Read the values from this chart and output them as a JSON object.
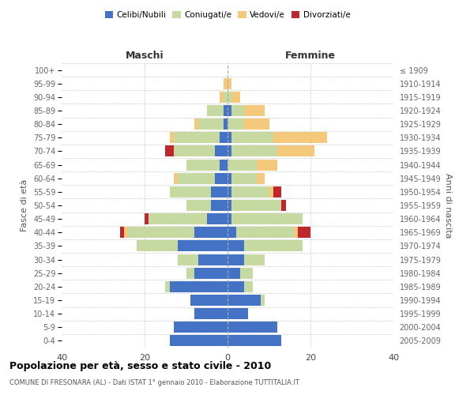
{
  "age_groups": [
    "0-4",
    "5-9",
    "10-14",
    "15-19",
    "20-24",
    "25-29",
    "30-34",
    "35-39",
    "40-44",
    "45-49",
    "50-54",
    "55-59",
    "60-64",
    "65-69",
    "70-74",
    "75-79",
    "80-84",
    "85-89",
    "90-94",
    "95-99",
    "100+"
  ],
  "birth_years": [
    "2005-2009",
    "2000-2004",
    "1995-1999",
    "1990-1994",
    "1985-1989",
    "1980-1984",
    "1975-1979",
    "1970-1974",
    "1965-1969",
    "1960-1964",
    "1955-1959",
    "1950-1954",
    "1945-1949",
    "1940-1944",
    "1935-1939",
    "1930-1934",
    "1925-1929",
    "1920-1924",
    "1915-1919",
    "1910-1914",
    "≤ 1909"
  ],
  "maschi": {
    "celibi": [
      14,
      13,
      8,
      9,
      14,
      8,
      7,
      12,
      8,
      5,
      4,
      4,
      3,
      2,
      3,
      2,
      1,
      1,
      0,
      0,
      0
    ],
    "coniugati": [
      0,
      0,
      0,
      0,
      1,
      2,
      5,
      10,
      16,
      14,
      6,
      10,
      9,
      8,
      10,
      11,
      6,
      4,
      1,
      0,
      0
    ],
    "vedovi": [
      0,
      0,
      0,
      0,
      0,
      0,
      0,
      0,
      1,
      0,
      0,
      0,
      1,
      0,
      0,
      1,
      1,
      0,
      1,
      1,
      0
    ],
    "divorziati": [
      0,
      0,
      0,
      0,
      0,
      0,
      0,
      0,
      1,
      1,
      0,
      0,
      0,
      0,
      2,
      0,
      0,
      0,
      0,
      0,
      0
    ]
  },
  "femmine": {
    "nubili": [
      13,
      12,
      5,
      8,
      4,
      3,
      4,
      4,
      2,
      1,
      1,
      1,
      1,
      0,
      1,
      1,
      0,
      1,
      0,
      0,
      0
    ],
    "coniugate": [
      0,
      0,
      0,
      1,
      2,
      3,
      5,
      14,
      14,
      17,
      12,
      9,
      6,
      7,
      11,
      10,
      4,
      3,
      1,
      0,
      0
    ],
    "vedove": [
      0,
      0,
      0,
      0,
      0,
      0,
      0,
      0,
      1,
      0,
      0,
      1,
      2,
      5,
      9,
      13,
      6,
      5,
      2,
      1,
      0
    ],
    "divorziate": [
      0,
      0,
      0,
      0,
      0,
      0,
      0,
      0,
      3,
      0,
      1,
      2,
      0,
      0,
      0,
      0,
      0,
      0,
      0,
      0,
      0
    ]
  },
  "color_celibi": "#4472c4",
  "color_coniugati": "#c5d9a0",
  "color_vedovi": "#f5c97b",
  "color_divorziati": "#c0272d",
  "xlim": 40,
  "title": "Popolazione per età, sesso e stato civile - 2010",
  "subtitle": "COMUNE DI FRESONARA (AL) - Dati ISTAT 1° gennaio 2010 - Elaborazione TUTTITALIA.IT",
  "ylabel": "Fasce di età",
  "ylabel_right": "Anni di nascita",
  "header_maschi": "Maschi",
  "header_femmine": "Femmine"
}
